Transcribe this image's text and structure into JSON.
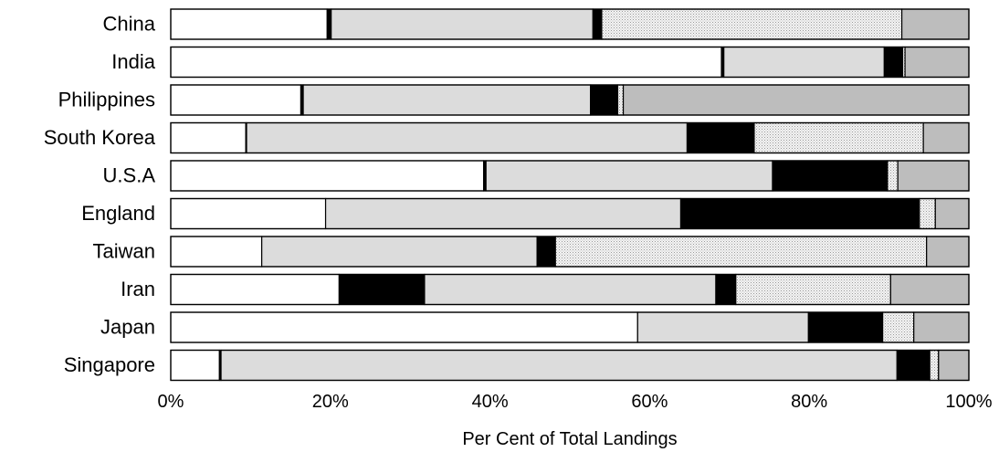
{
  "chart_data": {
    "type": "bar",
    "orientation": "horizontal",
    "stacked": true,
    "percent": true,
    "categories": [
      "China",
      "India",
      "Philippines",
      "South Korea",
      "U.S.A",
      "England",
      "Taiwan",
      "Iran",
      "Japan",
      "Singapore"
    ],
    "xlabel": "Per Cent of Total Landings",
    "xticks": [
      "0%",
      "20%",
      "40%",
      "60%",
      "80%",
      "100%"
    ],
    "xlim": [
      0,
      100
    ],
    "grid": false,
    "legend": "none",
    "segments": [
      [
        {
          "value": 19.6,
          "fill": "#ffffff"
        },
        {
          "value": 0.5,
          "fill": "#000000"
        },
        {
          "value": 32.8,
          "fill": "#dcdcdc"
        },
        {
          "value": 1.1,
          "fill": "#000000"
        },
        {
          "value": 37.6,
          "fill": "#f2f2f2",
          "pattern": "dots"
        },
        {
          "value": 8.4,
          "fill": "#bdbdbd"
        }
      ],
      [
        {
          "value": 69.0,
          "fill": "#ffffff"
        },
        {
          "value": 0.3,
          "fill": "#000000"
        },
        {
          "value": 20.1,
          "fill": "#dcdcdc"
        },
        {
          "value": 2.3,
          "fill": "#000000"
        },
        {
          "value": 0.3,
          "fill": "#f2f2f2",
          "pattern": "dots"
        },
        {
          "value": 8.0,
          "fill": "#bdbdbd"
        }
      ],
      [
        {
          "value": 16.3,
          "fill": "#ffffff"
        },
        {
          "value": 0.3,
          "fill": "#000000"
        },
        {
          "value": 36.0,
          "fill": "#dcdcdc"
        },
        {
          "value": 3.4,
          "fill": "#000000"
        },
        {
          "value": 0.7,
          "fill": "#f2f2f2",
          "pattern": "dots"
        },
        {
          "value": 43.3,
          "fill": "#bdbdbd"
        }
      ],
      [
        {
          "value": 9.4,
          "fill": "#ffffff"
        },
        {
          "value": 0.1,
          "fill": "#000000"
        },
        {
          "value": 55.2,
          "fill": "#dcdcdc"
        },
        {
          "value": 8.4,
          "fill": "#000000"
        },
        {
          "value": 21.2,
          "fill": "#f2f2f2",
          "pattern": "dots"
        },
        {
          "value": 5.7,
          "fill": "#bdbdbd"
        }
      ],
      [
        {
          "value": 39.2,
          "fill": "#ffffff"
        },
        {
          "value": 0.3,
          "fill": "#000000"
        },
        {
          "value": 35.9,
          "fill": "#dcdcdc"
        },
        {
          "value": 14.4,
          "fill": "#000000"
        },
        {
          "value": 1.3,
          "fill": "#f2f2f2",
          "pattern": "dots"
        },
        {
          "value": 8.9,
          "fill": "#bdbdbd"
        }
      ],
      [
        {
          "value": 19.4,
          "fill": "#ffffff"
        },
        {
          "value": 0.0,
          "fill": "#000000"
        },
        {
          "value": 44.5,
          "fill": "#dcdcdc"
        },
        {
          "value": 29.9,
          "fill": "#000000"
        },
        {
          "value": 2.0,
          "fill": "#f2f2f2",
          "pattern": "dots"
        },
        {
          "value": 4.2,
          "fill": "#bdbdbd"
        }
      ],
      [
        {
          "value": 11.4,
          "fill": "#ffffff"
        },
        {
          "value": 0.0,
          "fill": "#000000"
        },
        {
          "value": 34.5,
          "fill": "#dcdcdc"
        },
        {
          "value": 2.3,
          "fill": "#000000"
        },
        {
          "value": 46.5,
          "fill": "#f2f2f2",
          "pattern": "dots"
        },
        {
          "value": 5.3,
          "fill": "#bdbdbd"
        }
      ],
      [
        {
          "value": 21.1,
          "fill": "#ffffff"
        },
        {
          "value": 10.7,
          "fill": "#000000"
        },
        {
          "value": 36.5,
          "fill": "#dcdcdc"
        },
        {
          "value": 2.5,
          "fill": "#000000"
        },
        {
          "value": 19.4,
          "fill": "#f2f2f2",
          "pattern": "dots"
        },
        {
          "value": 9.8,
          "fill": "#bdbdbd"
        }
      ],
      [
        {
          "value": 58.5,
          "fill": "#ffffff"
        },
        {
          "value": 0.0,
          "fill": "#000000"
        },
        {
          "value": 21.4,
          "fill": "#dcdcdc"
        },
        {
          "value": 9.3,
          "fill": "#000000"
        },
        {
          "value": 3.9,
          "fill": "#f2f2f2",
          "pattern": "dots"
        },
        {
          "value": 6.9,
          "fill": "#bdbdbd"
        }
      ],
      [
        {
          "value": 6.1,
          "fill": "#ffffff"
        },
        {
          "value": 0.2,
          "fill": "#000000"
        },
        {
          "value": 84.7,
          "fill": "#dcdcdc"
        },
        {
          "value": 4.1,
          "fill": "#000000"
        },
        {
          "value": 1.1,
          "fill": "#f2f2f2",
          "pattern": "dots"
        },
        {
          "value": 3.8,
          "fill": "#bdbdbd"
        }
      ]
    ]
  }
}
